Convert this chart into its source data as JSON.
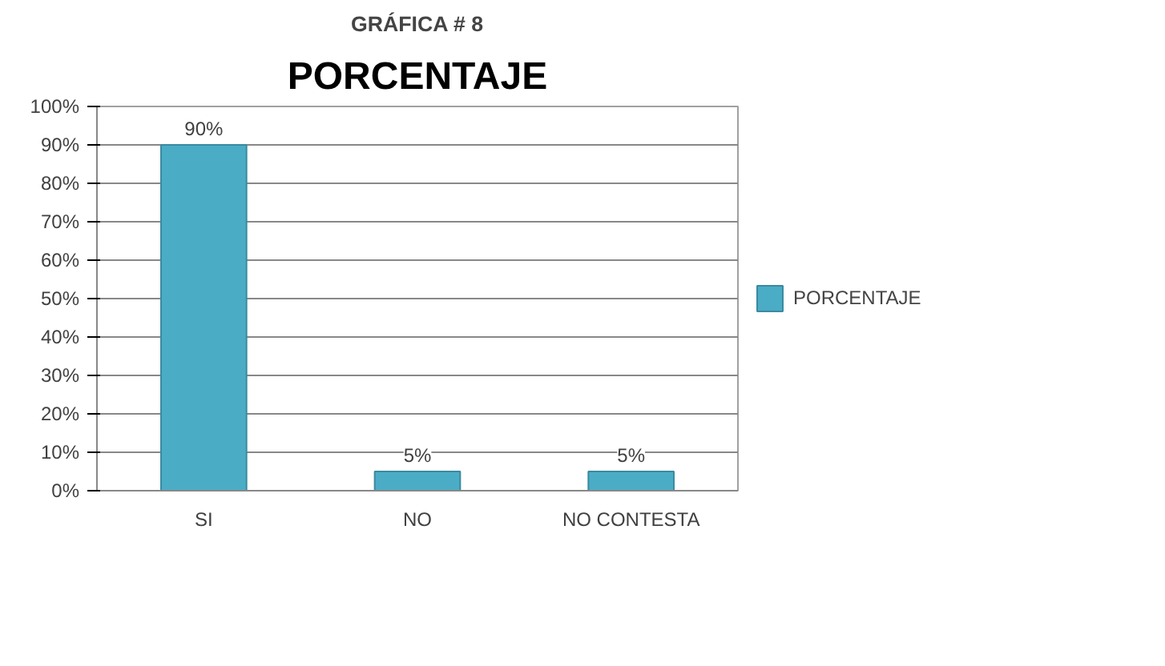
{
  "chart_data": {
    "type": "bar",
    "title": "GRÁFICA # 8",
    "subtitle": "PORCENTAJE",
    "categories": [
      "SI",
      "NO",
      "NO CONTESTA"
    ],
    "series": [
      {
        "name": "PORCENTAJE",
        "color": "#4bacc6",
        "values": [
          90,
          5,
          5
        ]
      }
    ],
    "value_labels": [
      "90%",
      "5%",
      "5%"
    ],
    "ylim": [
      0,
      100
    ],
    "yticks": [
      {
        "value": 0,
        "label": "0%"
      },
      {
        "value": 10,
        "label": "10%"
      },
      {
        "value": 20,
        "label": "20%"
      },
      {
        "value": 30,
        "label": "30%"
      },
      {
        "value": 40,
        "label": "40%"
      },
      {
        "value": 50,
        "label": "50%"
      },
      {
        "value": 60,
        "label": "60%"
      },
      {
        "value": 70,
        "label": "70%"
      },
      {
        "value": 80,
        "label": "80%"
      },
      {
        "value": 90,
        "label": "90%"
      },
      {
        "value": 100,
        "label": "100%"
      }
    ],
    "grid": "y",
    "legend": "right"
  }
}
